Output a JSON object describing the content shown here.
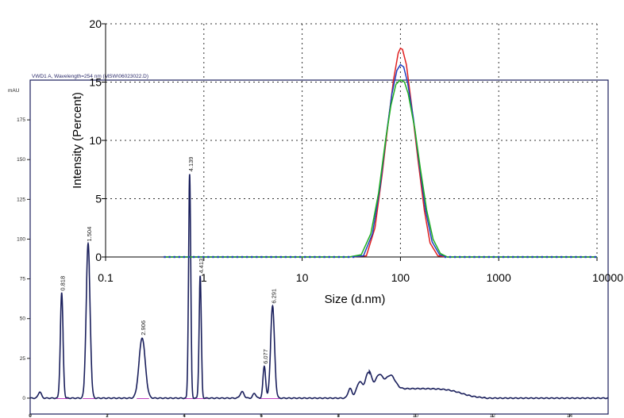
{
  "chart_data": [
    {
      "type": "line",
      "title": "VWD1 A, Wavelength=254 nm (MSW\\06023022.D)",
      "ylabel": "mAU",
      "xlim": [
        0,
        15
      ],
      "ylim": [
        -10,
        200
      ],
      "x_ticks": [
        0,
        2,
        4,
        6,
        8,
        10,
        12,
        14
      ],
      "x_tick_labels": [
        "0",
        "2",
        "4",
        "6",
        "8",
        "10",
        "12",
        "14"
      ],
      "y_ticks": [
        0,
        25,
        50,
        75,
        100,
        125,
        150,
        175
      ],
      "y_tick_labels": [
        "0",
        "25",
        "50",
        "75",
        "100",
        "125",
        "150",
        "175"
      ],
      "peaks": [
        {
          "rt": 0.818,
          "height": 66,
          "label": "0.818"
        },
        {
          "rt": 1.504,
          "height": 97,
          "label": "1.504"
        },
        {
          "rt": 2.906,
          "height": 38,
          "label": "2.906"
        },
        {
          "rt": 4.139,
          "height": 141,
          "label": "4.139"
        },
        {
          "rt": 4.413,
          "height": 77,
          "label": "4.413"
        },
        {
          "rt": 6.077,
          "height": 20,
          "label": "6.077"
        },
        {
          "rt": 6.291,
          "height": 58,
          "label": "6.291"
        }
      ],
      "colors": {
        "trace": "#1a1f5c",
        "baseline": "#c040c0"
      }
    },
    {
      "type": "line",
      "xlabel": "Size (d.nm)",
      "ylabel": "Intensity (Percent)",
      "x_scale": "log",
      "xlim": [
        0.1,
        10000
      ],
      "ylim": [
        0,
        20
      ],
      "x_ticks": [
        0.1,
        1,
        10,
        100,
        1000,
        10000
      ],
      "x_tick_labels": [
        "0.1",
        "1",
        "10",
        "100",
        "1000",
        "10000"
      ],
      "y_ticks": [
        0,
        5,
        10,
        15,
        20
      ],
      "y_tick_labels": [
        "0",
        "5",
        "10",
        "15",
        "20"
      ],
      "grid": true,
      "series": [
        {
          "color": "#e02020",
          "x": [
            0.4,
            30,
            45,
            55,
            65,
            75,
            85,
            95,
            100,
            105,
            115,
            130,
            150,
            175,
            200,
            240,
            300,
            10000
          ],
          "values": [
            0,
            0,
            0.1,
            2.5,
            7,
            11.5,
            15.2,
            17.5,
            17.9,
            17.8,
            16.5,
            13,
            8.5,
            4,
            1.2,
            0.1,
            0,
            0
          ]
        },
        {
          "color": "#2040c0",
          "x": [
            0.4,
            30,
            42,
            52,
            62,
            72,
            82,
            92,
            100,
            108,
            118,
            135,
            155,
            180,
            210,
            250,
            300,
            10000
          ],
          "values": [
            0,
            0,
            0.1,
            2,
            6,
            10.5,
            14,
            16,
            16.5,
            16.3,
            15,
            12,
            8,
            4,
            1.3,
            0.2,
            0,
            0
          ]
        },
        {
          "color": "#20b020",
          "x": [
            0.4,
            30,
            40,
            50,
            60,
            70,
            80,
            90,
            100,
            110,
            120,
            140,
            160,
            185,
            215,
            255,
            300,
            10000
          ],
          "values": [
            0,
            0,
            0.2,
            2,
            5.5,
            9.8,
            13,
            14.8,
            15.2,
            15,
            14,
            11,
            7.5,
            4,
            1.5,
            0.3,
            0,
            0
          ]
        }
      ]
    }
  ]
}
